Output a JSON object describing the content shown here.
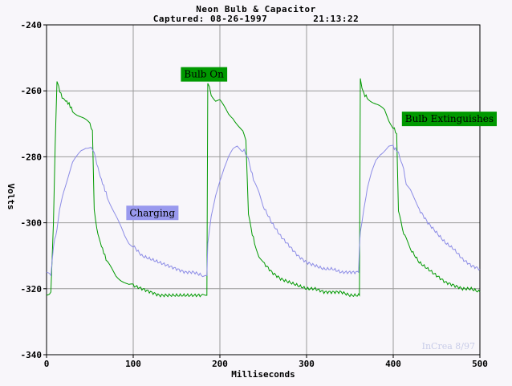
{
  "title": "Neon Bulb & Capacitor",
  "subtitle": "Captured: 08-26-1997        21:13:22",
  "watermark": "InCrea 8/97",
  "chart_data": {
    "type": "line",
    "xlabel": "Milliseconds",
    "ylabel": "Volts",
    "xlim": [
      0,
      500
    ],
    "ylim": [
      -340,
      -240
    ],
    "xticks": [
      0,
      100,
      200,
      300,
      400,
      500
    ],
    "yticks": [
      -240,
      -260,
      -280,
      -300,
      -320,
      -340
    ],
    "grid": true,
    "series": [
      {
        "color": "#009900",
        "x": [
          0,
          5,
          8,
          10,
          12,
          14,
          18,
          22,
          26,
          30,
          35,
          40,
          45,
          50,
          53,
          55,
          58,
          62,
          66,
          70,
          75,
          80,
          85,
          90,
          95,
          100,
          110,
          120,
          130,
          140,
          150,
          160,
          170,
          180,
          185,
          186,
          188,
          190,
          195,
          200,
          205,
          210,
          215,
          220,
          225,
          228,
          230,
          233,
          236,
          240,
          245,
          250,
          260,
          270,
          280,
          290,
          300,
          310,
          320,
          330,
          340,
          350,
          360,
          361,
          362,
          364,
          366,
          370,
          375,
          380,
          385,
          390,
          395,
          400,
          404,
          406,
          409,
          412,
          415,
          420,
          430,
          440,
          450,
          460,
          470,
          480,
          490,
          500
        ],
        "y": [
          -322,
          -321,
          -300,
          -276,
          -257,
          -259,
          -262,
          -263,
          -264,
          -266,
          -267,
          -268,
          -269,
          -270,
          -272,
          -296,
          -302,
          -306,
          -309,
          -312,
          -314,
          -316,
          -317,
          -318,
          -319,
          -319,
          -320,
          -321,
          -322,
          -322,
          -322,
          -322,
          -322,
          -322,
          -322,
          -258,
          -259,
          -261,
          -263,
          -263,
          -265,
          -267,
          -268,
          -270,
          -272,
          -273,
          -275,
          -297,
          -302,
          -306,
          -310,
          -312,
          -315,
          -317,
          -318,
          -319,
          -320,
          -320,
          -321,
          -321,
          -321,
          -322,
          -322,
          -322,
          -256,
          -259,
          -261,
          -262,
          -263,
          -264,
          -265,
          -266,
          -269,
          -271,
          -273,
          -296,
          -300,
          -303,
          -305,
          -308,
          -312,
          -314,
          -316,
          -318,
          -319,
          -320,
          -320,
          -321
        ]
      },
      {
        "color": "#8c8ce6",
        "x": [
          0,
          5,
          8,
          12,
          15,
          20,
          25,
          30,
          35,
          40,
          45,
          50,
          53,
          55,
          58,
          62,
          66,
          70,
          75,
          80,
          85,
          90,
          95,
          100,
          110,
          120,
          130,
          140,
          150,
          160,
          170,
          180,
          185,
          186,
          188,
          190,
          195,
          200,
          205,
          210,
          215,
          220,
          225,
          228,
          230,
          233,
          236,
          240,
          245,
          250,
          260,
          270,
          280,
          290,
          300,
          310,
          320,
          330,
          340,
          350,
          360,
          361,
          362,
          364,
          366,
          370,
          375,
          380,
          385,
          390,
          395,
          400,
          404,
          406,
          409,
          412,
          415,
          420,
          430,
          440,
          450,
          460,
          470,
          480,
          490,
          500
        ],
        "y": [
          -315,
          -316,
          -307,
          -302,
          -296,
          -290,
          -286,
          -282,
          -280,
          -278,
          -277,
          -277,
          -278,
          -279,
          -282,
          -286,
          -289,
          -292,
          -295,
          -298,
          -301,
          -304,
          -306,
          -307,
          -310,
          -311,
          -312,
          -313,
          -314,
          -315,
          -315,
          -316,
          -316,
          -306,
          -302,
          -298,
          -292,
          -287,
          -283,
          -280,
          -278,
          -277,
          -278,
          -278,
          -279,
          -281,
          -284,
          -288,
          -291,
          -295,
          -300,
          -304,
          -307,
          -310,
          -312,
          -313,
          -314,
          -314,
          -315,
          -315,
          -315,
          -307,
          -303,
          -300,
          -296,
          -290,
          -285,
          -281,
          -279,
          -278,
          -277,
          -277,
          -278,
          -279,
          -281,
          -284,
          -288,
          -290,
          -296,
          -300,
          -303,
          -306,
          -308,
          -311,
          -313,
          -314
        ]
      }
    ],
    "annotations": [
      {
        "text": "Bulb On",
        "x": 155,
        "y": -255,
        "bg": "#009900",
        "color": "#000000"
      },
      {
        "text": "Bulb Extinguishes",
        "x": 410,
        "y": -268.5,
        "bg": "#009900",
        "color": "#000000"
      },
      {
        "text": "Charging",
        "x": 92,
        "y": -297,
        "bg": "#9999ee",
        "color": "#000000"
      }
    ]
  }
}
